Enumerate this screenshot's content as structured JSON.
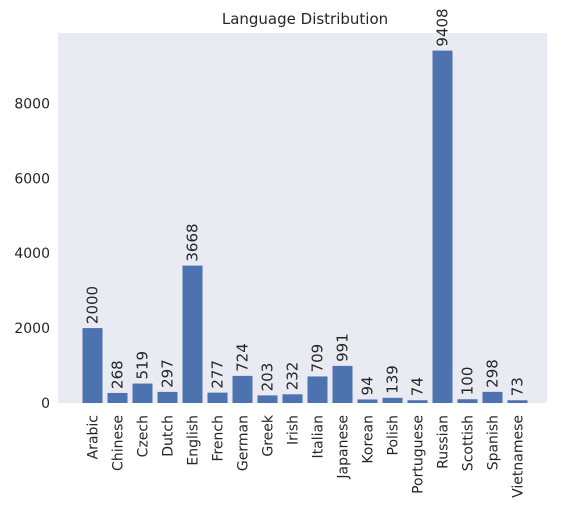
{
  "chart_data": {
    "type": "bar",
    "title": "Language Distribution",
    "xlabel": "",
    "ylabel": "",
    "categories": [
      "Arabic",
      "Chinese",
      "Czech",
      "Dutch",
      "English",
      "French",
      "German",
      "Greek",
      "Irish",
      "Italian",
      "Japanese",
      "Korean",
      "Polish",
      "Portuguese",
      "Russian",
      "Scottish",
      "Spanish",
      "Vietnamese"
    ],
    "values": [
      2000,
      268,
      519,
      297,
      3668,
      277,
      724,
      203,
      232,
      709,
      991,
      94,
      139,
      74,
      9408,
      100,
      298,
      73
    ],
    "ylim": [
      0,
      9878
    ],
    "yticks": [
      0,
      2000,
      4000,
      6000,
      8000
    ],
    "grid": false,
    "bar_color": "#4c72b0",
    "background_color": "#eaeaf2"
  }
}
